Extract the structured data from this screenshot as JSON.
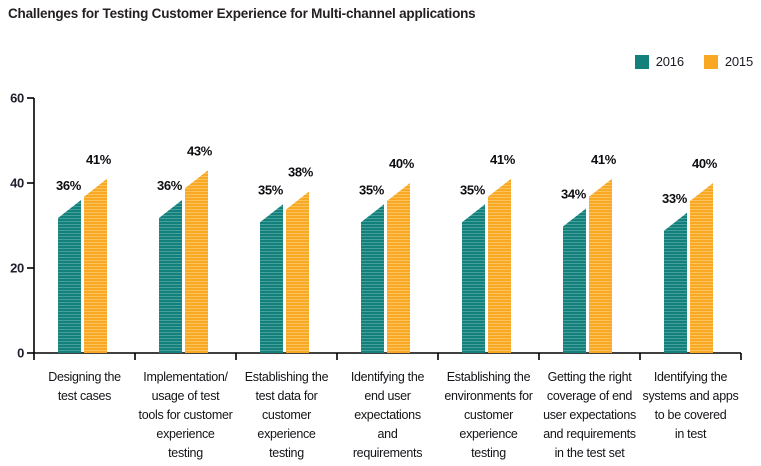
{
  "title": "Challenges for Testing Customer Experience for Multi-channel applications",
  "legend": [
    {
      "label": "2016",
      "color": "#14807B"
    },
    {
      "label": "2015",
      "color": "#F9A823"
    }
  ],
  "chart_data": {
    "type": "bar",
    "title": "Challenges for Testing Customer Experience for Multi-channel applications",
    "categories": [
      "Designing the test cases",
      "Implementation/ usage of test tools for customer experience testing",
      "Establishing the test data for customer experience testing",
      "Identifying the end user expectations and requirements",
      "Establishing the environments for customer experience testing",
      "Getting the right coverage of end user expectations and requirements in the test set",
      "Identifying the systems and apps to be covered in test"
    ],
    "category_lines": [
      [
        "Designing the",
        "test cases"
      ],
      [
        "Implementation/",
        "usage of test",
        "tools for customer",
        "experience",
        "testing"
      ],
      [
        "Establishing the",
        "test data for",
        "customer",
        "experience",
        "testing"
      ],
      [
        "Identifying the",
        "end user",
        "expectations",
        "and",
        "requirements"
      ],
      [
        "Establishing the",
        "environments for",
        "customer",
        "experience",
        "testing"
      ],
      [
        "Getting the right",
        "coverage of end",
        "user expectations",
        "and requirements",
        "in the test set"
      ],
      [
        "Identifying the",
        "systems and apps",
        "to be covered",
        "in test"
      ]
    ],
    "series": [
      {
        "name": "2016",
        "color": "#14807B",
        "stripe_color": "#45A09B",
        "values": [
          36,
          36,
          35,
          35,
          35,
          34,
          33
        ]
      },
      {
        "name": "2015",
        "color": "#F9A823",
        "stripe_color": "#FBC35E",
        "values": [
          41,
          43,
          38,
          40,
          41,
          41,
          40
        ]
      }
    ],
    "value_suffix": "%",
    "xlabel": "",
    "ylabel": "",
    "ylim": [
      0,
      60
    ],
    "yticks": [
      0,
      20,
      40,
      60
    ],
    "grid": false,
    "legend_position": "top-right",
    "axis_color": "#000000",
    "bar_style": "slanted-top-striped"
  }
}
